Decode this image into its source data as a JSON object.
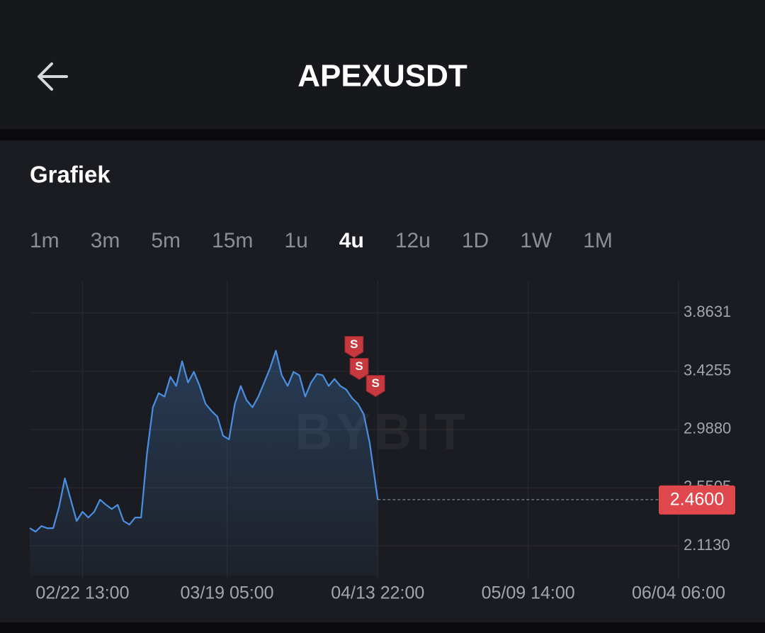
{
  "header": {
    "title": "APEXUSDT"
  },
  "section_title": "Grafiek",
  "tabs": [
    "1m",
    "3m",
    "5m",
    "15m",
    "1u",
    "4u",
    "12u",
    "1D",
    "1W",
    "1M"
  ],
  "active_tab": 5,
  "chart_data": {
    "type": "line",
    "watermark": "BYBIT",
    "color": "#4a90e2",
    "x": [
      "02/13 13:00",
      "02/14 13:00",
      "02/15 13:00",
      "02/16 13:00",
      "02/17 13:00",
      "02/18 13:00",
      "02/19 13:00",
      "02/20 13:00",
      "02/21 13:00",
      "02/22 13:00",
      "02/23 13:00",
      "02/24 13:00",
      "02/25 13:00",
      "02/26 13:00",
      "02/27 13:00",
      "02/28 13:00",
      "03/01 13:00",
      "03/02 13:00",
      "03/03 13:00",
      "03/04 13:00",
      "03/05 13:00",
      "03/06 13:00",
      "03/07 13:00",
      "03/08 13:00",
      "03/09 13:00",
      "03/10 13:00",
      "03/11 13:00",
      "03/12 13:00",
      "03/13 13:00",
      "03/14 13:00",
      "03/15 13:00",
      "03/16 13:00",
      "03/17 13:00",
      "03/18 13:00",
      "03/19 13:00",
      "03/20 13:00",
      "03/21 13:00",
      "03/22 13:00",
      "03/23 13:00",
      "03/24 13:00",
      "03/25 13:00",
      "03/26 13:00",
      "03/27 13:00",
      "03/28 13:00",
      "03/29 13:00",
      "03/30 13:00",
      "03/31 13:00",
      "04/01 13:00",
      "04/02 13:00",
      "04/03 13:00",
      "04/04 13:00",
      "04/05 13:00",
      "04/06 13:00",
      "04/07 13:00",
      "04/08 13:00",
      "04/09 13:00",
      "04/10 13:00",
      "04/11 13:00",
      "04/12 13:00",
      "04/13 22:00"
    ],
    "values": [
      2.246,
      2.22,
      2.262,
      2.246,
      2.246,
      2.406,
      2.62,
      2.46,
      2.3,
      2.369,
      2.326,
      2.369,
      2.46,
      2.422,
      2.39,
      2.422,
      2.3,
      2.273,
      2.326,
      2.326,
      2.807,
      3.154,
      3.26,
      3.234,
      3.383,
      3.314,
      3.5,
      3.34,
      3.42,
      3.314,
      3.18,
      3.127,
      3.084,
      2.94,
      2.913,
      3.18,
      3.314,
      3.207,
      3.154,
      3.234,
      3.34,
      3.447,
      3.58,
      3.394,
      3.314,
      3.42,
      3.394,
      3.234,
      3.34,
      3.404,
      3.394,
      3.314,
      3.367,
      3.314,
      3.287,
      3.223,
      3.18,
      3.1,
      2.887,
      2.46
    ],
    "xlim": [
      "02/13 13:00",
      "06/04 06:00"
    ],
    "xticks": [
      "02/22 13:00",
      "03/19 05:00",
      "04/13 22:00",
      "05/09 14:00",
      "06/04 06:00"
    ],
    "ylim": [
      1.89,
      4.11
    ],
    "yticks": [
      {
        "value": 2.113,
        "label": "2.1130"
      },
      2.5505,
      {
        "value": 2.988,
        "label": "2.9880"
      },
      3.4255,
      3.8631
    ],
    "grid": true,
    "last_price": {
      "value": 2.46,
      "label": "2.4600"
    },
    "trade_markers": [
      {
        "label": "S",
        "x": "04/09 21:00",
        "y": 3.527
      },
      {
        "label": "S",
        "x": "04/10 18:00",
        "y": 3.362
      },
      {
        "label": "S",
        "x": "04/13 13:00",
        "y": 3.234
      }
    ]
  }
}
